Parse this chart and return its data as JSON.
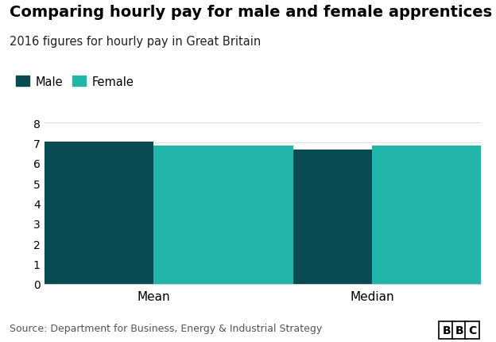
{
  "title": "Comparing hourly pay for male and female apprentices",
  "subtitle": "2016 figures for hourly pay in Great Britain",
  "categories": [
    "Mean",
    "Median"
  ],
  "male_values": [
    7.05,
    6.65
  ],
  "female_values": [
    6.85,
    6.85
  ],
  "male_color": "#0a4a52",
  "female_color": "#22b5aa",
  "legend_labels": [
    "Male",
    "Female"
  ],
  "ylim": [
    0,
    8
  ],
  "yticks": [
    0,
    1,
    2,
    3,
    4,
    5,
    6,
    7,
    8
  ],
  "source_text": "Source: Department for Business, Energy & Industrial Strategy",
  "bar_width": 0.32,
  "group_positions": [
    0.25,
    0.75
  ],
  "background_color": "#ffffff",
  "title_fontsize": 14,
  "subtitle_fontsize": 10.5,
  "tick_fontsize": 10,
  "legend_fontsize": 10.5,
  "source_fontsize": 9
}
